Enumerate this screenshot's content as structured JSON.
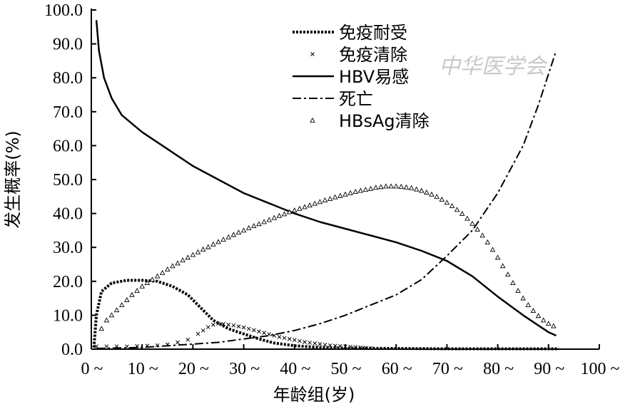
{
  "watermark": "中华医学会",
  "chart_data": {
    "type": "line",
    "title": "",
    "xlabel": "年龄组(岁)",
    "ylabel": "发生概率(%)",
    "xlim": [
      0,
      100
    ],
    "ylim": [
      0,
      100
    ],
    "x_ticks": [
      {
        "value": 0,
        "label": "0 ~"
      },
      {
        "value": 10,
        "label": "10 ~"
      },
      {
        "value": 20,
        "label": "20 ~"
      },
      {
        "value": 30,
        "label": "30 ~"
      },
      {
        "value": 40,
        "label": "40 ~"
      },
      {
        "value": 50,
        "label": "50 ~"
      },
      {
        "value": 60,
        "label": "60 ~"
      },
      {
        "value": 70,
        "label": "70 ~"
      },
      {
        "value": 80,
        "label": "80 ~"
      },
      {
        "value": 90,
        "label": "90 ~"
      },
      {
        "value": 100,
        "label": "100 ~"
      }
    ],
    "y_ticks": [
      {
        "value": 0,
        "label": "0.0"
      },
      {
        "value": 10,
        "label": "10.0"
      },
      {
        "value": 20,
        "label": "20.0"
      },
      {
        "value": 30,
        "label": "30.0"
      },
      {
        "value": 40,
        "label": "40.0"
      },
      {
        "value": 50,
        "label": "50.0"
      },
      {
        "value": 60,
        "label": "60.0"
      },
      {
        "value": 70,
        "label": "70.0"
      },
      {
        "value": 80,
        "label": "80.0"
      },
      {
        "value": 90,
        "label": "90.0"
      },
      {
        "value": 100,
        "label": "100.0"
      }
    ],
    "grid": false,
    "legend_position": "top-center",
    "series": [
      {
        "name": "免疫耐受",
        "style": "dotted",
        "color": "#000000",
        "points": [
          [
            0.5,
            0.5
          ],
          [
            1,
            10
          ],
          [
            2,
            17
          ],
          [
            4,
            19.5
          ],
          [
            7,
            20.3
          ],
          [
            10,
            20.3
          ],
          [
            13,
            20
          ],
          [
            16,
            18.5
          ],
          [
            19,
            16
          ],
          [
            21,
            13
          ],
          [
            24,
            8.5
          ],
          [
            27,
            6
          ],
          [
            30,
            4.5
          ],
          [
            33,
            3
          ],
          [
            36,
            1.8
          ],
          [
            40,
            1.0
          ],
          [
            45,
            0.5
          ],
          [
            50,
            0.3
          ],
          [
            60,
            0.2
          ],
          [
            70,
            0.1
          ],
          [
            80,
            0.1
          ],
          [
            92,
            0.1
          ]
        ]
      },
      {
        "name": "免疫清除",
        "style": "markers-x",
        "color": "#000000",
        "points": [
          [
            1,
            0.8
          ],
          [
            3,
            0.8
          ],
          [
            5,
            0.8
          ],
          [
            7,
            0.8
          ],
          [
            9,
            0.9
          ],
          [
            11,
            1.0
          ],
          [
            13,
            1.1
          ],
          [
            15,
            1.4
          ],
          [
            17,
            2.0
          ],
          [
            19,
            2.8
          ],
          [
            21,
            4.5
          ],
          [
            22,
            5.5
          ],
          [
            23,
            6.5
          ],
          [
            24,
            7.2
          ],
          [
            25,
            7.5
          ],
          [
            26,
            7.4
          ],
          [
            27,
            7.2
          ],
          [
            28,
            7.0
          ],
          [
            29,
            6.7
          ],
          [
            30,
            6.4
          ],
          [
            31,
            6.0
          ],
          [
            32,
            5.6
          ],
          [
            33,
            5.2
          ],
          [
            34,
            4.8
          ],
          [
            35,
            4.4
          ],
          [
            36,
            4.0
          ],
          [
            37,
            3.6
          ],
          [
            38,
            3.3
          ],
          [
            39,
            3.0
          ],
          [
            40,
            2.7
          ],
          [
            41,
            2.4
          ],
          [
            42,
            2.1
          ],
          [
            43,
            1.9
          ],
          [
            44,
            1.7
          ],
          [
            45,
            1.5
          ],
          [
            46,
            1.3
          ],
          [
            47,
            1.1
          ],
          [
            48,
            1.0
          ],
          [
            49,
            0.9
          ],
          [
            50,
            0.8
          ],
          [
            51,
            0.7
          ],
          [
            52,
            0.6
          ],
          [
            53,
            0.5
          ],
          [
            54,
            0.4
          ],
          [
            55,
            0.3
          ]
        ]
      },
      {
        "name": "HBV易感",
        "style": "solid",
        "color": "#000000",
        "points": [
          [
            1,
            97
          ],
          [
            1.5,
            88
          ],
          [
            2.5,
            80
          ],
          [
            4,
            74
          ],
          [
            6,
            69
          ],
          [
            10,
            64
          ],
          [
            15,
            59
          ],
          [
            20,
            54
          ],
          [
            25,
            50
          ],
          [
            30,
            46
          ],
          [
            35,
            43
          ],
          [
            40,
            40
          ],
          [
            45,
            37.5
          ],
          [
            50,
            35.5
          ],
          [
            55,
            33.5
          ],
          [
            60,
            31.5
          ],
          [
            65,
            29
          ],
          [
            70,
            26
          ],
          [
            75,
            21.5
          ],
          [
            80,
            15.5
          ],
          [
            85,
            10
          ],
          [
            90,
            5
          ],
          [
            91.5,
            4
          ]
        ]
      },
      {
        "name": "死亡",
        "style": "dashdot",
        "color": "#000000",
        "points": [
          [
            1,
            0.2
          ],
          [
            10,
            0.5
          ],
          [
            20,
            1.5
          ],
          [
            25,
            2
          ],
          [
            30,
            3
          ],
          [
            35,
            4
          ],
          [
            40,
            5.5
          ],
          [
            45,
            7.5
          ],
          [
            50,
            10
          ],
          [
            55,
            13
          ],
          [
            60,
            16
          ],
          [
            65,
            20.5
          ],
          [
            70,
            27.5
          ],
          [
            75,
            35
          ],
          [
            80,
            46
          ],
          [
            85,
            60
          ],
          [
            88,
            72
          ],
          [
            91.5,
            88
          ]
        ]
      },
      {
        "name": "HBsAg清除",
        "style": "markers-triangle",
        "color": "#000000",
        "points": [
          [
            2,
            6
          ],
          [
            3,
            8.5
          ],
          [
            4,
            10
          ],
          [
            5,
            11.5
          ],
          [
            6,
            13
          ],
          [
            7,
            14.5
          ],
          [
            8,
            16
          ],
          [
            9,
            17.2
          ],
          [
            10,
            18.5
          ],
          [
            11,
            19.5
          ],
          [
            12,
            20.5
          ],
          [
            13,
            21.5
          ],
          [
            14,
            22.5
          ],
          [
            15,
            23.5
          ],
          [
            16,
            24.5
          ],
          [
            17,
            25.3
          ],
          [
            18,
            26.2
          ],
          [
            19,
            27
          ],
          [
            20,
            27.8
          ],
          [
            21,
            28.6
          ],
          [
            22,
            29.4
          ],
          [
            23,
            30.1
          ],
          [
            24,
            30.9
          ],
          [
            25,
            31.6
          ],
          [
            26,
            32.3
          ],
          [
            27,
            33
          ],
          [
            28,
            33.7
          ],
          [
            29,
            34.4
          ],
          [
            30,
            35
          ],
          [
            31,
            35.7
          ],
          [
            32,
            36.3
          ],
          [
            33,
            36.9
          ],
          [
            34,
            37.5
          ],
          [
            35,
            38.1
          ],
          [
            36,
            38.7
          ],
          [
            37,
            39.3
          ],
          [
            38,
            39.8
          ],
          [
            39,
            40.4
          ],
          [
            40,
            40.9
          ],
          [
            41,
            41.4
          ],
          [
            42,
            41.9
          ],
          [
            43,
            42.4
          ],
          [
            44,
            42.9
          ],
          [
            45,
            43.4
          ],
          [
            46,
            43.9
          ],
          [
            47,
            44.3
          ],
          [
            48,
            44.8
          ],
          [
            49,
            45.2
          ],
          [
            50,
            45.6
          ],
          [
            51,
            46
          ],
          [
            52,
            46.4
          ],
          [
            53,
            46.7
          ],
          [
            54,
            47
          ],
          [
            55,
            47.3
          ],
          [
            56,
            47.6
          ],
          [
            57,
            47.8
          ],
          [
            58,
            48
          ],
          [
            59,
            48
          ],
          [
            60,
            48
          ],
          [
            61,
            47.9
          ],
          [
            62,
            47.7
          ],
          [
            63,
            47.5
          ],
          [
            64,
            47.1
          ],
          [
            65,
            46.7
          ],
          [
            66,
            46.2
          ],
          [
            67,
            45.6
          ],
          [
            68,
            44.9
          ],
          [
            69,
            44.1
          ],
          [
            70,
            43.2
          ],
          [
            71,
            42.2
          ],
          [
            72,
            41.1
          ],
          [
            73,
            39.9
          ],
          [
            74,
            38.5
          ],
          [
            75,
            37
          ],
          [
            76,
            35.3
          ],
          [
            77,
            33.5
          ],
          [
            78,
            31.5
          ],
          [
            79,
            29.3
          ],
          [
            80,
            27
          ],
          [
            81,
            24.5
          ],
          [
            82,
            22
          ],
          [
            83,
            19.5
          ],
          [
            84,
            17.2
          ],
          [
            85,
            15
          ],
          [
            86,
            13
          ],
          [
            87,
            11.3
          ],
          [
            88,
            9.8
          ],
          [
            89,
            8.5
          ],
          [
            90,
            7.5
          ],
          [
            91,
            6.8
          ]
        ]
      }
    ]
  }
}
